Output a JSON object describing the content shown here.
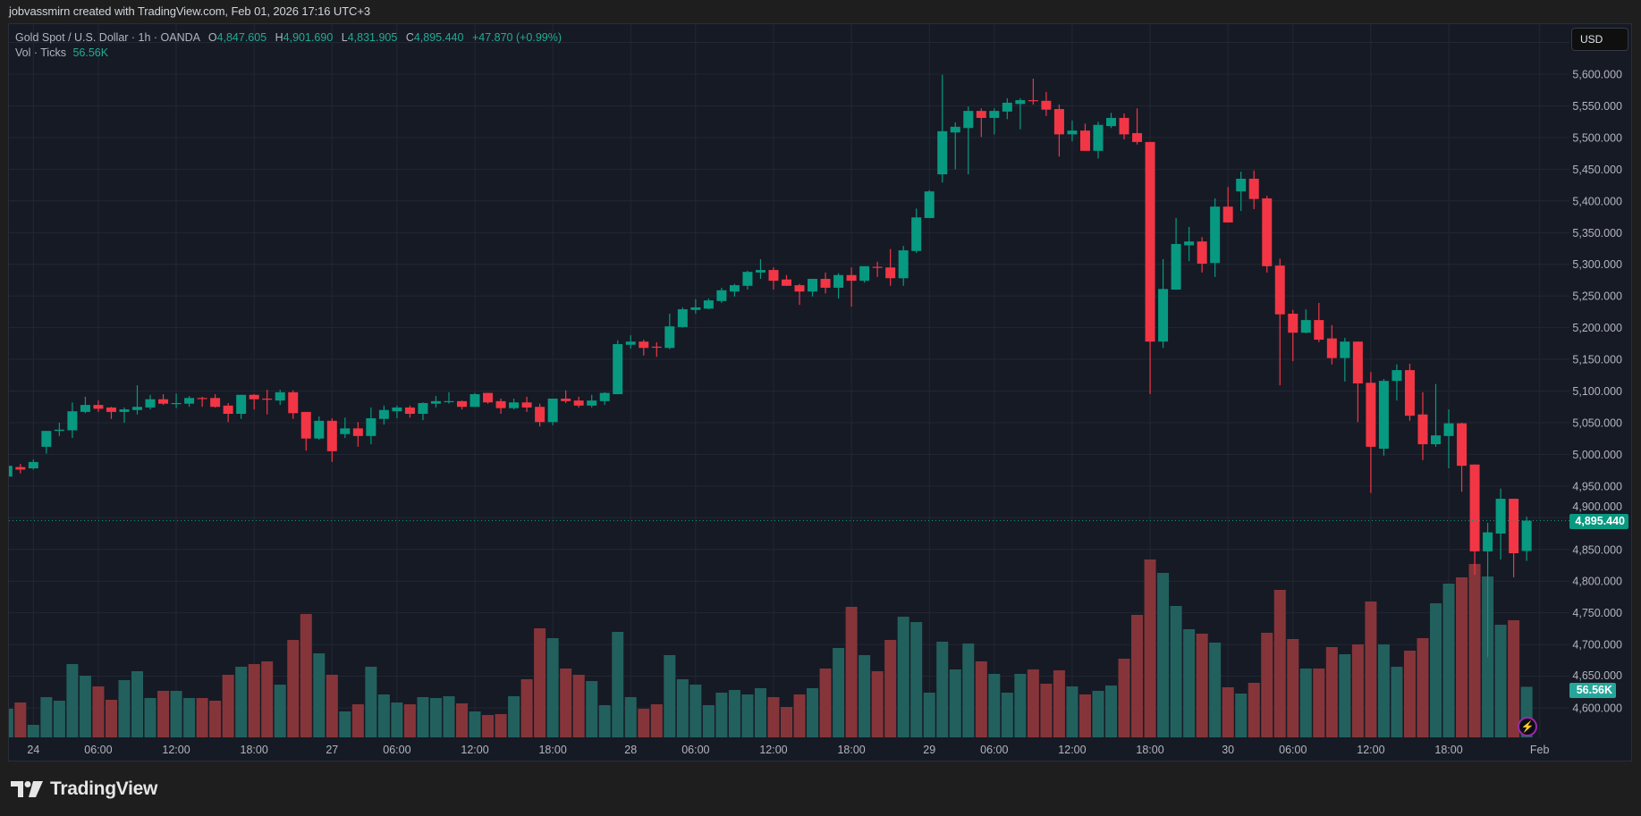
{
  "header": {
    "attribution": "jobvassmirn created with TradingView.com, Feb 01, 2026 17:16 UTC+3"
  },
  "legend": {
    "symbol": "Gold Spot / U.S. Dollar · 1h · OANDA",
    "o_label": "O",
    "o_value": "4,847.605",
    "h_label": "H",
    "h_value": "4,901.690",
    "l_label": "L",
    "l_value": "4,831.905",
    "c_label": "C",
    "c_value": "4,895.440",
    "change": "+47.870 (+0.99%)",
    "vol_label": "Vol · Ticks",
    "vol_value": "56.56K"
  },
  "price_axis": {
    "currency": "USD",
    "last_price": "4,895.440",
    "last_volume": "56.56K"
  },
  "footer": {
    "brand": "TradingView"
  },
  "icons": {
    "logo": "tradingview-logo-icon",
    "bolt": "lightning-icon"
  },
  "colors": {
    "background": "#161a25",
    "up": "#089981",
    "down": "#f23645",
    "volume_up": "#22605e",
    "volume_down": "#853539",
    "grid": "#232734",
    "axis_text": "#b2b5be"
  },
  "chart_data": {
    "type": "candlestick",
    "symbol": "XAUUSD",
    "interval": "1h",
    "ylim": [
      4555,
      5680
    ],
    "grid": true,
    "y_ticks": [
      "4,600.000",
      "4,650.000",
      "4,700.000",
      "4,750.000",
      "4,800.000",
      "4,850.000",
      "4,900.000",
      "4,950.000",
      "5,000.000",
      "5,050.000",
      "5,100.000",
      "5,150.000",
      "5,200.000",
      "5,250.000",
      "5,300.000",
      "5,350.000",
      "5,400.000",
      "5,450.000",
      "5,500.000",
      "5,550.000",
      "5,600.000"
    ],
    "x_ticks": [
      {
        "label": "24",
        "bar": 2
      },
      {
        "label": "06:00",
        "bar": 7
      },
      {
        "label": "12:00",
        "bar": 13
      },
      {
        "label": "18:00",
        "bar": 19
      },
      {
        "label": "27",
        "bar": 25
      },
      {
        "label": "06:00",
        "bar": 30
      },
      {
        "label": "12:00",
        "bar": 36
      },
      {
        "label": "18:00",
        "bar": 42
      },
      {
        "label": "28",
        "bar": 48
      },
      {
        "label": "06:00",
        "bar": 53
      },
      {
        "label": "12:00",
        "bar": 59
      },
      {
        "label": "18:00",
        "bar": 65
      },
      {
        "label": "29",
        "bar": 71
      },
      {
        "label": "06:00",
        "bar": 76
      },
      {
        "label": "12:00",
        "bar": 82
      },
      {
        "label": "18:00",
        "bar": 88
      },
      {
        "label": "30",
        "bar": 94
      },
      {
        "label": "06:00",
        "bar": 99
      },
      {
        "label": "12:00",
        "bar": 105
      },
      {
        "label": "18:00",
        "bar": 111
      },
      {
        "label": "Feb",
        "bar": 118
      }
    ],
    "fields": [
      "open",
      "high",
      "low",
      "close"
    ],
    "candles": [
      [
        4965,
        4985,
        4960,
        4982
      ],
      [
        4980,
        4985,
        4970,
        4976
      ],
      [
        4978,
        4992,
        4976,
        4988
      ],
      [
        5012,
        5037,
        5001,
        5037
      ],
      [
        5037,
        5050,
        5029,
        5039
      ],
      [
        5038,
        5082,
        5026,
        5068
      ],
      [
        5067,
        5091,
        5065,
        5078
      ],
      [
        5078,
        5085,
        5067,
        5072
      ],
      [
        5074,
        5075,
        5056,
        5067
      ],
      [
        5067,
        5074,
        5050,
        5071
      ],
      [
        5070,
        5109,
        5063,
        5075
      ],
      [
        5074,
        5094,
        5071,
        5087
      ],
      [
        5087,
        5095,
        5078,
        5080
      ],
      [
        5080,
        5096,
        5073,
        5081
      ],
      [
        5080,
        5092,
        5075,
        5089
      ],
      [
        5089,
        5091,
        5075,
        5088
      ],
      [
        5089,
        5095,
        5074,
        5075
      ],
      [
        5077,
        5081,
        5051,
        5064
      ],
      [
        5064,
        5094,
        5056,
        5094
      ],
      [
        5094,
        5095,
        5071,
        5087
      ],
      [
        5088,
        5102,
        5063,
        5087
      ],
      [
        5085,
        5102,
        5078,
        5098
      ],
      [
        5098,
        5101,
        5056,
        5065
      ],
      [
        5067,
        5067,
        5006,
        5025
      ],
      [
        5025,
        5060,
        5023,
        5053
      ],
      [
        5053,
        5057,
        4988,
        5005
      ],
      [
        5032,
        5058,
        5026,
        5041
      ],
      [
        5041,
        5051,
        5012,
        5029
      ],
      [
        5029,
        5074,
        5016,
        5057
      ],
      [
        5056,
        5077,
        5047,
        5070
      ],
      [
        5068,
        5077,
        5057,
        5074
      ],
      [
        5074,
        5077,
        5058,
        5064
      ],
      [
        5064,
        5082,
        5054,
        5081
      ],
      [
        5080,
        5092,
        5074,
        5084
      ],
      [
        5083,
        5098,
        5080,
        5084
      ],
      [
        5084,
        5085,
        5071,
        5075
      ],
      [
        5075,
        5097,
        5075,
        5095
      ],
      [
        5097,
        5097,
        5080,
        5082
      ],
      [
        5084,
        5088,
        5064,
        5073
      ],
      [
        5073,
        5088,
        5071,
        5082
      ],
      [
        5082,
        5091,
        5067,
        5074
      ],
      [
        5075,
        5080,
        5044,
        5051
      ],
      [
        5051,
        5088,
        5046,
        5088
      ],
      [
        5088,
        5101,
        5081,
        5084
      ],
      [
        5085,
        5091,
        5074,
        5077
      ],
      [
        5077,
        5094,
        5074,
        5085
      ],
      [
        5084,
        5098,
        5078,
        5097
      ],
      [
        5095,
        5180,
        5095,
        5174
      ],
      [
        5173,
        5188,
        5167,
        5178
      ],
      [
        5178,
        5181,
        5156,
        5168
      ],
      [
        5170,
        5177,
        5154,
        5169
      ],
      [
        5168,
        5222,
        5166,
        5202
      ],
      [
        5201,
        5232,
        5200,
        5229
      ],
      [
        5228,
        5245,
        5222,
        5232
      ],
      [
        5230,
        5246,
        5229,
        5243
      ],
      [
        5242,
        5263,
        5239,
        5259
      ],
      [
        5257,
        5269,
        5249,
        5267
      ],
      [
        5266,
        5290,
        5260,
        5288
      ],
      [
        5287,
        5308,
        5277,
        5291
      ],
      [
        5291,
        5295,
        5260,
        5274
      ],
      [
        5276,
        5283,
        5266,
        5266
      ],
      [
        5267,
        5269,
        5236,
        5257
      ],
      [
        5257,
        5277,
        5249,
        5277
      ],
      [
        5277,
        5287,
        5254,
        5263
      ],
      [
        5263,
        5286,
        5246,
        5283
      ],
      [
        5283,
        5295,
        5233,
        5274
      ],
      [
        5274,
        5297,
        5271,
        5297
      ],
      [
        5296,
        5304,
        5280,
        5295
      ],
      [
        5295,
        5324,
        5266,
        5278
      ],
      [
        5278,
        5329,
        5266,
        5322
      ],
      [
        5321,
        5388,
        5318,
        5374
      ],
      [
        5373,
        5417,
        5373,
        5415
      ],
      [
        5442,
        5599,
        5429,
        5510
      ],
      [
        5508,
        5524,
        5450,
        5517
      ],
      [
        5515,
        5549,
        5442,
        5542
      ],
      [
        5542,
        5546,
        5501,
        5531
      ],
      [
        5531,
        5546,
        5505,
        5542
      ],
      [
        5541,
        5562,
        5529,
        5555
      ],
      [
        5553,
        5562,
        5513,
        5559
      ],
      [
        5559,
        5593,
        5552,
        5558
      ],
      [
        5558,
        5572,
        5534,
        5544
      ],
      [
        5545,
        5552,
        5470,
        5505
      ],
      [
        5505,
        5527,
        5494,
        5511
      ],
      [
        5511,
        5522,
        5479,
        5479
      ],
      [
        5479,
        5525,
        5467,
        5520
      ],
      [
        5518,
        5539,
        5515,
        5531
      ],
      [
        5531,
        5538,
        5497,
        5505
      ],
      [
        5507,
        5546,
        5489,
        5493
      ],
      [
        5493,
        5493,
        5095,
        5178
      ],
      [
        5178,
        5308,
        5168,
        5261
      ],
      [
        5260,
        5373,
        5260,
        5332
      ],
      [
        5330,
        5359,
        5305,
        5336
      ],
      [
        5336,
        5343,
        5287,
        5301
      ],
      [
        5302,
        5404,
        5280,
        5391
      ],
      [
        5391,
        5422,
        5366,
        5366
      ],
      [
        5415,
        5446,
        5384,
        5435
      ],
      [
        5435,
        5448,
        5387,
        5403
      ],
      [
        5404,
        5408,
        5287,
        5297
      ],
      [
        5298,
        5309,
        5109,
        5221
      ],
      [
        5222,
        5228,
        5147,
        5192
      ],
      [
        5192,
        5229,
        5191,
        5212
      ],
      [
        5212,
        5239,
        5177,
        5181
      ],
      [
        5183,
        5204,
        5142,
        5152
      ],
      [
        5152,
        5184,
        5115,
        5178
      ],
      [
        5178,
        5178,
        5051,
        5112
      ],
      [
        5113,
        5130,
        4939,
        5012
      ],
      [
        5009,
        5119,
        4998,
        5116
      ],
      [
        5116,
        5142,
        5085,
        5133
      ],
      [
        5133,
        5143,
        5053,
        5061
      ],
      [
        5063,
        5098,
        4991,
        5016
      ],
      [
        5016,
        5111,
        5012,
        5030
      ],
      [
        5029,
        5071,
        4978,
        5049
      ],
      [
        5049,
        5050,
        4941,
        4982
      ],
      [
        4984,
        4984,
        4810,
        4847
      ],
      [
        4847,
        4892,
        4680,
        4877
      ],
      [
        4875,
        4946,
        4834,
        4930
      ],
      [
        4930,
        4930,
        4806,
        4844
      ],
      [
        4847.605,
        4901.69,
        4831.905,
        4895.44
      ]
    ],
    "volume_unit": "K",
    "volume": [
      32,
      39,
      14,
      45,
      41,
      82,
      69,
      57,
      42,
      64,
      74,
      44,
      52,
      52,
      44,
      44,
      41,
      70,
      79,
      82,
      85,
      59,
      109,
      138,
      94,
      70,
      29,
      37,
      79,
      48,
      39,
      37,
      45,
      44,
      46,
      38,
      29,
      25,
      26,
      46,
      65,
      122,
      111,
      77,
      70,
      63,
      36,
      118,
      45,
      32,
      37,
      92,
      65,
      59,
      36,
      50,
      53,
      48,
      55,
      45,
      34,
      48,
      55,
      77,
      100,
      146,
      92,
      74,
      109,
      135,
      129,
      50,
      107,
      76,
      105,
      85,
      71,
      50,
      71,
      76,
      60,
      75,
      57,
      48,
      52,
      58,
      88,
      137,
      199,
      184,
      147,
      121,
      116,
      106,
      56,
      49,
      61,
      117,
      165,
      110,
      77,
      77,
      101,
      93,
      104,
      152,
      104,
      79,
      97,
      111,
      150,
      172,
      179,
      194,
      180,
      126,
      131,
      56.56
    ],
    "last_price": 4895.44
  }
}
